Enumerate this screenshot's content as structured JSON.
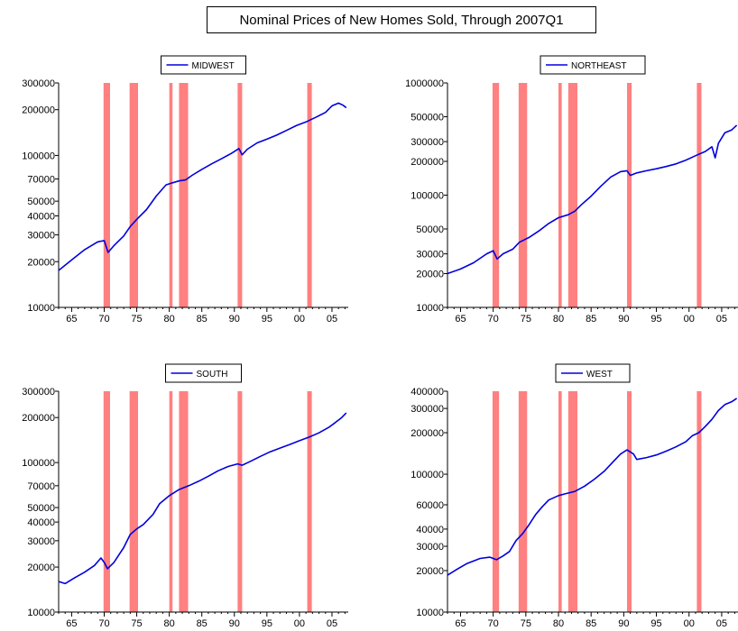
{
  "title": "Nominal Prices of New Homes Sold,  Through 2007Q1",
  "colors": {
    "line": "#0000dd",
    "recession": "#ff8080",
    "axis": "#000000",
    "background": "#ffffff"
  },
  "recessions": [
    [
      1969.9,
      1970.9
    ],
    [
      1973.9,
      1975.2
    ],
    [
      1980.0,
      1980.5
    ],
    [
      1981.5,
      1982.9
    ],
    [
      1990.5,
      1991.2
    ],
    [
      2001.2,
      2001.9
    ]
  ],
  "chart_data": [
    {
      "type": "line",
      "legend": "MIDWEST",
      "scale": "log",
      "ylim": [
        10000,
        300000
      ],
      "xlim": [
        1963,
        2007.5
      ],
      "xticks": [
        1965,
        1970,
        1975,
        1980,
        1985,
        1990,
        1995,
        2000,
        2005
      ],
      "xtick_labels": [
        "65",
        "70",
        "75",
        "80",
        "85",
        "90",
        "95",
        "00",
        "05"
      ],
      "yticks": [
        10000,
        20000,
        30000,
        40000,
        50000,
        70000,
        100000,
        200000,
        300000
      ],
      "ytick_labels": [
        "10000",
        "20000",
        "30000",
        "40000",
        "50000",
        "70000",
        "100000",
        "200000",
        "300000"
      ],
      "series": [
        {
          "points": [
            [
              1963.0,
              17500
            ],
            [
              1965.0,
              20500
            ],
            [
              1967.0,
              24000
            ],
            [
              1969.0,
              27000
            ],
            [
              1970.0,
              27500
            ],
            [
              1970.6,
              23000
            ],
            [
              1971.5,
              25500
            ],
            [
              1973.0,
              29500
            ],
            [
              1974.0,
              34000
            ],
            [
              1975.0,
              38000
            ],
            [
              1976.5,
              44000
            ],
            [
              1978.0,
              54000
            ],
            [
              1979.5,
              64000
            ],
            [
              1980.5,
              66000
            ],
            [
              1981.5,
              68000
            ],
            [
              1982.5,
              69000
            ],
            [
              1983.5,
              74000
            ],
            [
              1985.0,
              81000
            ],
            [
              1986.5,
              88000
            ],
            [
              1988.0,
              95000
            ],
            [
              1989.5,
              103000
            ],
            [
              1990.7,
              111000
            ],
            [
              1991.2,
              101000
            ],
            [
              1992.0,
              110000
            ],
            [
              1993.5,
              121000
            ],
            [
              1995.0,
              128000
            ],
            [
              1996.5,
              136000
            ],
            [
              1998.0,
              146000
            ],
            [
              1999.5,
              157000
            ],
            [
              2001.0,
              166000
            ],
            [
              2002.5,
              178000
            ],
            [
              2004.0,
              192000
            ],
            [
              2005.0,
              212000
            ],
            [
              2006.0,
              221000
            ],
            [
              2006.7,
              214000
            ],
            [
              2007.2,
              206000
            ]
          ]
        }
      ]
    },
    {
      "type": "line",
      "legend": "NORTHEAST",
      "scale": "log",
      "ylim": [
        10000,
        1000000
      ],
      "xlim": [
        1963,
        2007.5
      ],
      "xticks": [
        1965,
        1970,
        1975,
        1980,
        1985,
        1990,
        1995,
        2000,
        2005
      ],
      "xtick_labels": [
        "65",
        "70",
        "75",
        "80",
        "85",
        "90",
        "95",
        "00",
        "05"
      ],
      "yticks": [
        10000,
        20000,
        30000,
        50000,
        100000,
        200000,
        300000,
        500000,
        1000000
      ],
      "ytick_labels": [
        "10000",
        "20000",
        "30000",
        "50000",
        "100000",
        "200000",
        "300000",
        "500000",
        "1000000"
      ],
      "series": [
        {
          "points": [
            [
              1963.0,
              20000
            ],
            [
              1965.0,
              22000
            ],
            [
              1967.0,
              25000
            ],
            [
              1969.0,
              30000
            ],
            [
              1970.0,
              32000
            ],
            [
              1970.6,
              27000
            ],
            [
              1971.5,
              30000
            ],
            [
              1973.0,
              33000
            ],
            [
              1974.0,
              38000
            ],
            [
              1975.5,
              42000
            ],
            [
              1977.0,
              48000
            ],
            [
              1978.5,
              56000
            ],
            [
              1980.0,
              63000
            ],
            [
              1981.5,
              67000
            ],
            [
              1982.5,
              72000
            ],
            [
              1983.5,
              82000
            ],
            [
              1985.0,
              98000
            ],
            [
              1986.5,
              120000
            ],
            [
              1988.0,
              145000
            ],
            [
              1989.5,
              162000
            ],
            [
              1990.5,
              165000
            ],
            [
              1991.0,
              150000
            ],
            [
              1992.0,
              158000
            ],
            [
              1993.5,
              165000
            ],
            [
              1995.0,
              172000
            ],
            [
              1996.5,
              180000
            ],
            [
              1998.0,
              190000
            ],
            [
              1999.5,
              205000
            ],
            [
              2001.0,
              225000
            ],
            [
              2002.5,
              245000
            ],
            [
              2003.5,
              270000
            ],
            [
              2004.0,
              215000
            ],
            [
              2004.5,
              290000
            ],
            [
              2005.5,
              360000
            ],
            [
              2006.5,
              380000
            ],
            [
              2007.3,
              420000
            ]
          ]
        }
      ]
    },
    {
      "type": "line",
      "legend": "SOUTH",
      "scale": "log",
      "ylim": [
        10000,
        300000
      ],
      "xlim": [
        1963,
        2007.5
      ],
      "xticks": [
        1965,
        1970,
        1975,
        1980,
        1985,
        1990,
        1995,
        2000,
        2005
      ],
      "xtick_labels": [
        "65",
        "70",
        "75",
        "80",
        "85",
        "90",
        "95",
        "00",
        "05"
      ],
      "yticks": [
        10000,
        20000,
        30000,
        40000,
        50000,
        70000,
        100000,
        200000,
        300000
      ],
      "ytick_labels": [
        "10000",
        "20000",
        "30000",
        "40000",
        "50000",
        "70000",
        "100000",
        "200000",
        "300000"
      ],
      "series": [
        {
          "points": [
            [
              1963.0,
              16000
            ],
            [
              1964.0,
              15500
            ],
            [
              1965.5,
              17000
            ],
            [
              1967.0,
              18500
            ],
            [
              1968.5,
              20500
            ],
            [
              1969.5,
              23000
            ],
            [
              1970.0,
              21500
            ],
            [
              1970.5,
              19500
            ],
            [
              1971.5,
              21500
            ],
            [
              1973.0,
              27000
            ],
            [
              1974.0,
              33000
            ],
            [
              1975.0,
              36000
            ],
            [
              1976.0,
              38500
            ],
            [
              1977.5,
              45000
            ],
            [
              1978.5,
              53000
            ],
            [
              1980.0,
              60000
            ],
            [
              1981.5,
              66000
            ],
            [
              1983.0,
              70000
            ],
            [
              1984.5,
              75000
            ],
            [
              1986.0,
              81000
            ],
            [
              1987.5,
              88000
            ],
            [
              1989.0,
              94000
            ],
            [
              1990.5,
              98000
            ],
            [
              1991.2,
              96000
            ],
            [
              1992.5,
              102000
            ],
            [
              1994.0,
              110000
            ],
            [
              1995.5,
              118000
            ],
            [
              1997.0,
              125000
            ],
            [
              1998.5,
              132000
            ],
            [
              2000.0,
              140000
            ],
            [
              2001.5,
              148000
            ],
            [
              2003.0,
              158000
            ],
            [
              2004.5,
              172000
            ],
            [
              2005.5,
              185000
            ],
            [
              2006.5,
              200000
            ],
            [
              2007.2,
              215000
            ]
          ]
        }
      ]
    },
    {
      "type": "line",
      "legend": "WEST",
      "scale": "log",
      "ylim": [
        10000,
        400000
      ],
      "xlim": [
        1963,
        2007.5
      ],
      "xticks": [
        1965,
        1970,
        1975,
        1980,
        1985,
        1990,
        1995,
        2000,
        2005
      ],
      "xtick_labels": [
        "65",
        "70",
        "75",
        "80",
        "85",
        "90",
        "95",
        "00",
        "05"
      ],
      "yticks": [
        10000,
        20000,
        30000,
        40000,
        60000,
        100000,
        200000,
        300000,
        400000
      ],
      "ytick_labels": [
        "10000",
        "20000",
        "30000",
        "40000",
        "60000",
        "100000",
        "200000",
        "300000",
        "400000"
      ],
      "series": [
        {
          "points": [
            [
              1963.0,
              18500
            ],
            [
              1964.5,
              20500
            ],
            [
              1966.0,
              22500
            ],
            [
              1968.0,
              24500
            ],
            [
              1969.5,
              25000
            ],
            [
              1970.5,
              24000
            ],
            [
              1971.5,
              25500
            ],
            [
              1972.5,
              27500
            ],
            [
              1973.5,
              33000
            ],
            [
              1974.5,
              37000
            ],
            [
              1975.5,
              43000
            ],
            [
              1976.5,
              51000
            ],
            [
              1977.5,
              58000
            ],
            [
              1978.5,
              65000
            ],
            [
              1980.0,
              70000
            ],
            [
              1981.0,
              72000
            ],
            [
              1982.5,
              75000
            ],
            [
              1984.0,
              82000
            ],
            [
              1985.5,
              92000
            ],
            [
              1987.0,
              105000
            ],
            [
              1988.5,
              125000
            ],
            [
              1989.5,
              140000
            ],
            [
              1990.5,
              150000
            ],
            [
              1991.5,
              140000
            ],
            [
              1992.0,
              128000
            ],
            [
              1993.5,
              132000
            ],
            [
              1995.0,
              138000
            ],
            [
              1996.5,
              147000
            ],
            [
              1998.0,
              158000
            ],
            [
              1999.5,
              172000
            ],
            [
              2000.5,
              190000
            ],
            [
              2001.5,
              200000
            ],
            [
              2002.5,
              222000
            ],
            [
              2003.5,
              250000
            ],
            [
              2004.5,
              290000
            ],
            [
              2005.5,
              320000
            ],
            [
              2006.5,
              335000
            ],
            [
              2007.3,
              355000
            ]
          ]
        }
      ]
    }
  ]
}
